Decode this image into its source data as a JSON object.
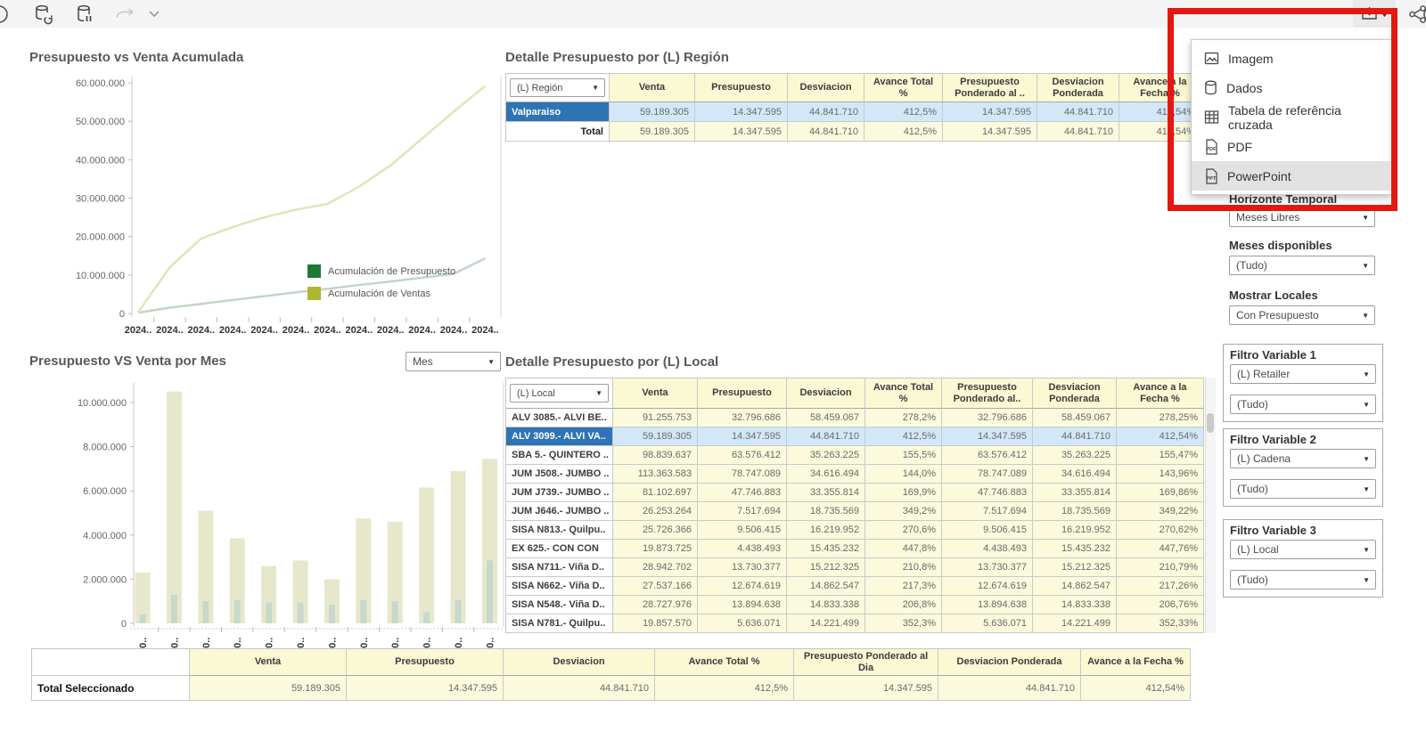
{
  "toolbar": {
    "left_icons": [
      "refresh-icon",
      "database-refresh-icon",
      "database-status-icon",
      "redo-icon",
      "redo-caret-icon"
    ],
    "right_icons": [
      "export-download-icon",
      "export-caret-icon",
      "share-icon",
      "clock-icon"
    ]
  },
  "export_menu": {
    "items": [
      {
        "label": "Imagem",
        "icon": "image-icon",
        "highlighted": false
      },
      {
        "label": "Dados",
        "icon": "database-icon",
        "highlighted": false
      },
      {
        "label": "Tabela de referência cruzada",
        "icon": "crosstab-icon",
        "highlighted": false
      },
      {
        "label": "PDF",
        "icon": "pdf-icon",
        "highlighted": false
      },
      {
        "label": "PowerPoint",
        "icon": "powerpoint-icon",
        "highlighted": true
      }
    ]
  },
  "chart_data": [
    {
      "type": "line",
      "title": "Presupuesto vs Venta Acumulada",
      "categories": [
        "2024..",
        "2024..",
        "2024..",
        "2024..",
        "2024..",
        "2024..",
        "2024..",
        "2024..",
        "2024..",
        "2024..",
        "2024..",
        "2024.."
      ],
      "series": [
        {
          "name": "Acumulación de Presupuesto",
          "legend_color": "#1e7b34",
          "line_color": "#c3d5c3",
          "values": [
            200000,
            1500000,
            2500000,
            3500000,
            4500000,
            5500000,
            6400000,
            7400000,
            8300000,
            9300000,
            10300000,
            14347595
          ]
        },
        {
          "name": "Acumulación de Ventas",
          "legend_color": "#aeb732",
          "line_color": "#e3e3b9",
          "values": [
            300000,
            12000000,
            19500000,
            22500000,
            25000000,
            27000000,
            28500000,
            33000000,
            38500000,
            45500000,
            52500000,
            59189305
          ]
        }
      ],
      "y_ticks": [
        "60.000.000",
        "50.000.000",
        "40.000.000",
        "30.000.000",
        "20.000.000",
        "10.000.000",
        "0"
      ],
      "ylim": [
        0,
        60000000
      ],
      "grid": false,
      "legend_position": "inside-right"
    },
    {
      "type": "bar",
      "title": "Presupuesto VS Venta por Mes",
      "selector_value": "Mes",
      "categories": [
        "20..",
        "20..",
        "20..",
        "20..",
        "20..",
        "20..",
        "20..",
        "20..",
        "20..",
        "20..",
        "20..",
        "20.."
      ],
      "series": [
        {
          "name": "Venta",
          "color": "#e7e8cb",
          "values": [
            2300000,
            10500000,
            5100000,
            3850000,
            2600000,
            2850000,
            2000000,
            4750000,
            4600000,
            6150000,
            6900000,
            7450000
          ]
        },
        {
          "name": "Presupuesto",
          "color": "#c6d9cb",
          "values": [
            400000,
            1300000,
            1000000,
            1050000,
            950000,
            950000,
            850000,
            1050000,
            1000000,
            500000,
            1050000,
            2850000
          ]
        }
      ],
      "y_ticks": [
        "10.000.000",
        "8.000.000",
        "6.000.000",
        "4.000.000",
        "2.000.000",
        "0"
      ],
      "ylim": [
        0,
        10500000
      ],
      "grid": false
    }
  ],
  "region_table": {
    "title": "Detalle Presupuesto por (L) Región",
    "selector": "(L) Región",
    "columns": [
      "Venta",
      "Presupuesto",
      "Desviacion",
      "Avance Total %",
      "Presupuesto Ponderado al ..",
      "Desviacion Ponderada",
      "Avance a la Fecha %"
    ],
    "rows": [
      {
        "label": "Valparaiso",
        "selected": true,
        "values": [
          "59.189.305",
          "14.347.595",
          "44.841.710",
          "412,5%",
          "14.347.595",
          "44.841.710",
          "412,54%"
        ]
      }
    ],
    "total": {
      "label": "Total",
      "values": [
        "59.189.305",
        "14.347.595",
        "44.841.710",
        "412,5%",
        "14.347.595",
        "44.841.710",
        "412,54%"
      ]
    }
  },
  "local_table": {
    "title": "Detalle Presupuesto por (L) Local",
    "selector": "(L) Local",
    "columns": [
      "Venta",
      "Presupuesto",
      "Desviacion",
      "Avance Total %",
      "Presupuesto Ponderado al..",
      "Desviacion Ponderada",
      "Avance a la Fecha %"
    ],
    "rows": [
      {
        "label": "ALV 3085.- ALVI BE..",
        "selected": false,
        "values": [
          "91.255.753",
          "32.796.686",
          "58.459.067",
          "278,2%",
          "32.796.686",
          "58.459.067",
          "278,25%"
        ]
      },
      {
        "label": "ALV 3099.- ALVI VA..",
        "selected": true,
        "values": [
          "59.189.305",
          "14.347.595",
          "44.841.710",
          "412,5%",
          "14.347.595",
          "44.841.710",
          "412,54%"
        ]
      },
      {
        "label": "SBA 5.- QUINTERO ..",
        "selected": false,
        "values": [
          "98.839.637",
          "63.576.412",
          "35.263.225",
          "155,5%",
          "63.576.412",
          "35.263.225",
          "155,47%"
        ]
      },
      {
        "label": "JUM J508.- JUMBO ..",
        "selected": false,
        "values": [
          "113.363.583",
          "78.747.089",
          "34.616.494",
          "144,0%",
          "78.747.089",
          "34.616.494",
          "143,96%"
        ]
      },
      {
        "label": "JUM J739.- JUMBO ..",
        "selected": false,
        "values": [
          "81.102.697",
          "47.746.883",
          "33.355.814",
          "169,9%",
          "47.746.883",
          "33.355.814",
          "169,86%"
        ]
      },
      {
        "label": "JUM J646.- JUMBO ..",
        "selected": false,
        "values": [
          "26.253.264",
          "7.517.694",
          "18.735.569",
          "349,2%",
          "7.517.694",
          "18.735.569",
          "349,22%"
        ]
      },
      {
        "label": "SISA N813.- Quilpu..",
        "selected": false,
        "values": [
          "25.726.366",
          "9.506.415",
          "16.219.952",
          "270,6%",
          "9.506.415",
          "16.219.952",
          "270,62%"
        ]
      },
      {
        "label": "EX 625.- CON CON",
        "selected": false,
        "values": [
          "19.873.725",
          "4.438.493",
          "15.435.232",
          "447,8%",
          "4.438.493",
          "15.435.232",
          "447,76%"
        ]
      },
      {
        "label": "SISA N711.- Viña D..",
        "selected": false,
        "values": [
          "28.942.702",
          "13.730.377",
          "15.212.325",
          "210,8%",
          "13.730.377",
          "15.212.325",
          "210,79%"
        ]
      },
      {
        "label": "SISA N662.- Viña D..",
        "selected": false,
        "values": [
          "27.537.166",
          "12.674.619",
          "14.862.547",
          "217,3%",
          "12.674.619",
          "14.862.547",
          "217,26%"
        ]
      },
      {
        "label": "SISA N548.- Viña D..",
        "selected": false,
        "values": [
          "28.727.976",
          "13.894.638",
          "14.833.338",
          "206,8%",
          "13.894.638",
          "14.833.338",
          "206,76%"
        ]
      },
      {
        "label": "SISA N781.- Quilpu..",
        "selected": false,
        "values": [
          "19.857.570",
          "5.636.071",
          "14.221.499",
          "352,3%",
          "5.636.071",
          "14.221.499",
          "352,33%"
        ]
      }
    ]
  },
  "summary_table": {
    "columns": [
      "Venta",
      "Presupuesto",
      "Desviacion",
      "Avance Total %",
      "Presupuesto Ponderado al Dia",
      "Desviacion Ponderada",
      "Avance a la Fecha %"
    ],
    "row_label": "Total Seleccionado",
    "values": [
      "59.189.305",
      "14.347.595",
      "44.841.710",
      "412,5%",
      "14.347.595",
      "44.841.710",
      "412,54%"
    ]
  },
  "sidebar": {
    "horizonte_label": "Horizonte Temporal",
    "horizonte_value": "Meses Libres",
    "meses_label": "Meses disponibles",
    "meses_value": "(Tudo)",
    "mostrar_label": "Mostrar Locales",
    "mostrar_value": "Con Presupuesto",
    "filters": [
      {
        "title": "Filtro Variable 1",
        "dimension": "(L) Retailer",
        "value": "(Tudo)"
      },
      {
        "title": "Filtro Variable 2",
        "dimension": "(L) Cadena",
        "value": "(Tudo)"
      },
      {
        "title": "Filtro Variable 3",
        "dimension": "(L) Local",
        "value": "(Tudo)"
      }
    ]
  },
  "colors": {
    "selected_row_header": "#2e74b5",
    "selected_row_fill": "#d2e8f9",
    "table_yellow": "#fbfadd",
    "header_yellow": "#fbf8d4",
    "annotation_red": "#e31812",
    "bar_venta": "#e7e8cb",
    "bar_presupuesto": "#c6d9cb"
  }
}
